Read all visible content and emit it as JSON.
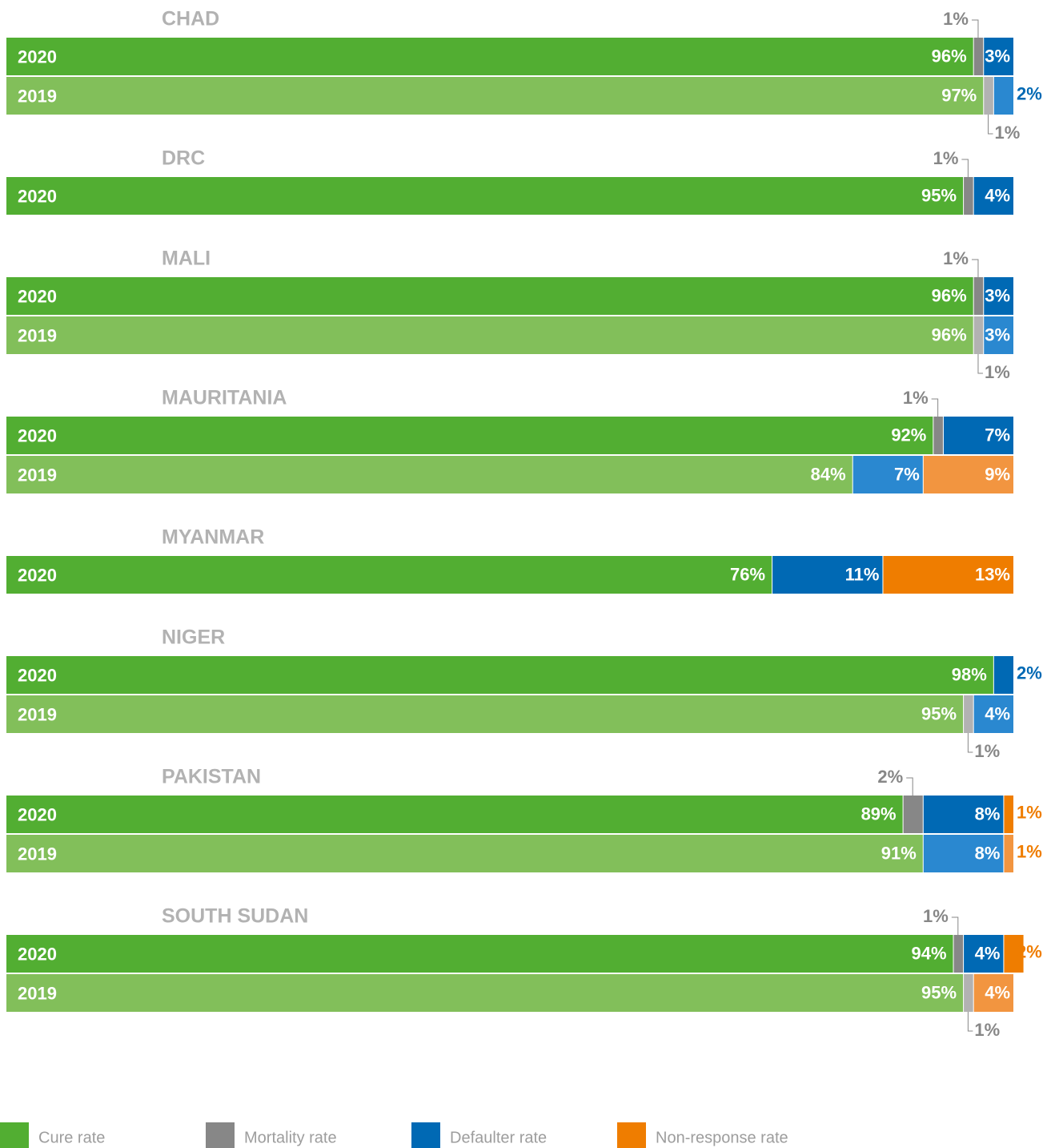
{
  "chart_data": {
    "type": "stacked_bar_groups",
    "xlim": [
      0,
      100
    ],
    "series": [
      {
        "name": "Cure rate",
        "color": "#52ae32",
        "light_color": "#82bf5a"
      },
      {
        "name": "Mortality rate",
        "color": "#878787",
        "light_color": "#b2b2b2"
      },
      {
        "name": "Defaulter rate",
        "color": "#0069b4",
        "light_color": "#2a88d0"
      },
      {
        "name": "Non-response rate",
        "color": "#ef7d00",
        "light_color": "#f29540"
      }
    ],
    "groups": [
      {
        "name": "CHAD",
        "bars": [
          {
            "label": "2020",
            "light": false,
            "values": [
              96,
              1,
              3,
              null
            ],
            "value_labels": [
              "96%",
              "1%",
              "3%",
              null
            ]
          },
          {
            "label": "2019",
            "light": true,
            "values": [
              97,
              1,
              2,
              null
            ],
            "value_labels": [
              "97%",
              "1%",
              "2%",
              null
            ]
          }
        ]
      },
      {
        "name": "DRC",
        "bars": [
          {
            "label": "2020",
            "light": false,
            "values": [
              95,
              1,
              4,
              null
            ],
            "value_labels": [
              "95%",
              "1%",
              "4%",
              null
            ]
          }
        ]
      },
      {
        "name": "MALI",
        "bars": [
          {
            "label": "2020",
            "light": false,
            "values": [
              96,
              1,
              3,
              null
            ],
            "value_labels": [
              "96%",
              "1%",
              "3%",
              null
            ]
          },
          {
            "label": "2019",
            "light": true,
            "values": [
              96,
              1,
              3,
              null
            ],
            "value_labels": [
              "96%",
              "1%",
              "3%",
              null
            ]
          }
        ]
      },
      {
        "name": "MAURITANIA",
        "bars": [
          {
            "label": "2020",
            "light": false,
            "values": [
              92,
              1,
              7,
              null
            ],
            "value_labels": [
              "92%",
              "1%",
              "7%",
              null
            ]
          },
          {
            "label": "2019",
            "light": true,
            "values": [
              84,
              null,
              7,
              9
            ],
            "value_labels": [
              "84%",
              null,
              "7%",
              "9%"
            ]
          }
        ]
      },
      {
        "name": "MYANMAR",
        "bars": [
          {
            "label": "2020",
            "light": false,
            "values": [
              76,
              null,
              11,
              13
            ],
            "value_labels": [
              "76%",
              null,
              "11%",
              "13%"
            ]
          }
        ]
      },
      {
        "name": "NIGER",
        "bars": [
          {
            "label": "2020",
            "light": false,
            "values": [
              98,
              null,
              2,
              null
            ],
            "value_labels": [
              "98%",
              null,
              "2%",
              null
            ]
          },
          {
            "label": "2019",
            "light": true,
            "values": [
              95,
              1,
              4,
              null
            ],
            "value_labels": [
              "95%",
              "1%",
              "4%",
              null
            ]
          }
        ]
      },
      {
        "name": "PAKISTAN",
        "bars": [
          {
            "label": "2020",
            "light": false,
            "values": [
              89,
              2,
              8,
              1
            ],
            "value_labels": [
              "89%",
              "2%",
              "8%",
              "1%"
            ]
          },
          {
            "label": "2019",
            "light": true,
            "values": [
              91,
              null,
              8,
              1
            ],
            "value_labels": [
              "91%",
              null,
              "8%",
              "1%"
            ]
          }
        ]
      },
      {
        "name": "SOUTH SUDAN",
        "bars": [
          {
            "label": "2020",
            "light": false,
            "values": [
              94,
              1,
              4,
              2
            ],
            "value_labels": [
              "94%",
              "1%",
              "4%",
              "2%"
            ]
          },
          {
            "label": "2019",
            "light": true,
            "values": [
              95,
              1,
              null,
              4
            ],
            "value_labels": [
              "95%",
              "1%",
              null,
              "4%"
            ]
          }
        ]
      }
    ]
  }
}
